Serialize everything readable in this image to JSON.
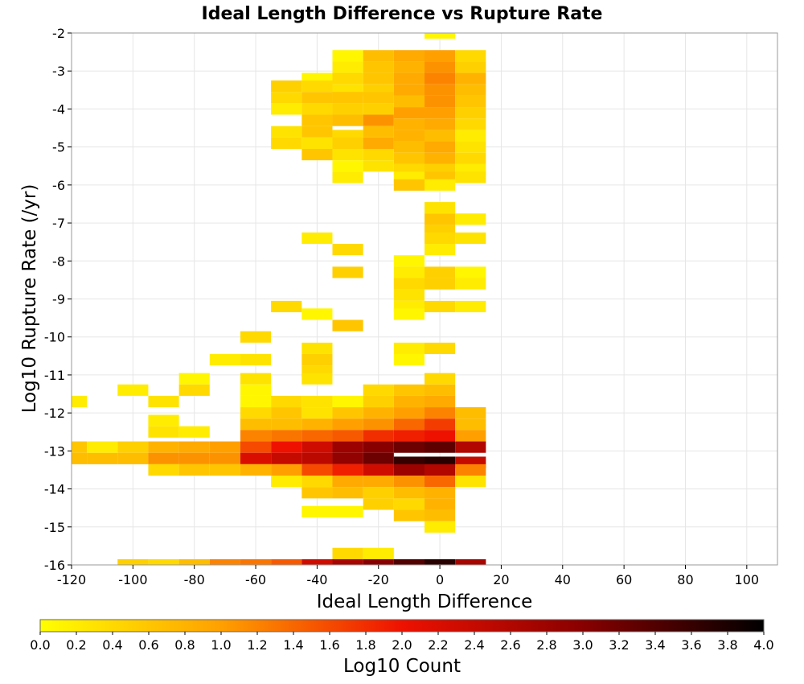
{
  "chart_data": {
    "type": "heatmap",
    "title": "Ideal Length Difference vs Rupture Rate",
    "xlabel": "Ideal Length Difference",
    "ylabel": "Log10 Rupture Rate (/yr)",
    "colorbar_label": "Log10 Count",
    "xlim": [
      -120,
      110
    ],
    "ylim": [
      -16,
      -2
    ],
    "x_ticks": [
      -120,
      -100,
      -80,
      -60,
      -40,
      -20,
      0,
      20,
      40,
      60,
      80,
      100
    ],
    "y_ticks": [
      -2,
      -3,
      -4,
      -5,
      -6,
      -7,
      -8,
      -9,
      -10,
      -11,
      -12,
      -13,
      -14,
      -15,
      -16
    ],
    "colorbar_range": [
      0,
      4
    ],
    "colorbar_ticks": [
      "0.0",
      "0.2",
      "0.4",
      "0.6",
      "0.8",
      "1.0",
      "1.2",
      "1.4",
      "1.6",
      "1.8",
      "2.0",
      "2.2",
      "2.4",
      "2.6",
      "2.8",
      "3.0",
      "3.2",
      "3.4",
      "3.6",
      "3.8",
      "4.0"
    ],
    "colormap": [
      "#ffff00",
      "#ffa000",
      "#ee1100",
      "#880000",
      "#000000"
    ],
    "bin_width_x": 10,
    "bin_height_y": 0.3,
    "cells": [
      [
        0,
        -2.0,
        0.1
      ],
      [
        -30,
        -2.6,
        0.1
      ],
      [
        -20,
        -2.6,
        0.7
      ],
      [
        -10,
        -2.6,
        0.9
      ],
      [
        0,
        -2.6,
        1.0
      ],
      [
        10,
        -2.6,
        0.4
      ],
      [
        -30,
        -2.9,
        0.2
      ],
      [
        -20,
        -2.9,
        0.6
      ],
      [
        -10,
        -2.9,
        0.8
      ],
      [
        0,
        -2.9,
        1.1
      ],
      [
        10,
        -2.9,
        0.5
      ],
      [
        -40,
        -3.2,
        0.1
      ],
      [
        -30,
        -3.2,
        0.4
      ],
      [
        -20,
        -3.2,
        0.6
      ],
      [
        -10,
        -3.2,
        0.9
      ],
      [
        0,
        -3.2,
        1.2
      ],
      [
        10,
        -3.2,
        0.8
      ],
      [
        -50,
        -3.4,
        0.5
      ],
      [
        -40,
        -3.4,
        0.4
      ],
      [
        -30,
        -3.5,
        0.3
      ],
      [
        -20,
        -3.5,
        0.5
      ],
      [
        -10,
        -3.5,
        0.9
      ],
      [
        0,
        -3.5,
        1.1
      ],
      [
        10,
        -3.5,
        0.7
      ],
      [
        -50,
        -3.7,
        0.4
      ],
      [
        -40,
        -3.7,
        0.6
      ],
      [
        -30,
        -3.7,
        0.6
      ],
      [
        -20,
        -3.7,
        0.6
      ],
      [
        -10,
        -3.8,
        0.7
      ],
      [
        0,
        -3.8,
        1.1
      ],
      [
        10,
        -3.8,
        0.6
      ],
      [
        -50,
        -4.0,
        0.2
      ],
      [
        -30,
        -4.0,
        0.5
      ],
      [
        -40,
        -4.0,
        0.4
      ],
      [
        -20,
        -4.0,
        0.5
      ],
      [
        -10,
        -4.1,
        1.0
      ],
      [
        0,
        -4.1,
        1.0
      ],
      [
        10,
        -4.1,
        0.5
      ],
      [
        -40,
        -4.3,
        0.6
      ],
      [
        -30,
        -4.3,
        0.7
      ],
      [
        -20,
        -4.3,
        1.1
      ],
      [
        -10,
        -4.4,
        0.8
      ],
      [
        0,
        -4.4,
        0.9
      ],
      [
        10,
        -4.4,
        0.4
      ],
      [
        -50,
        -4.6,
        0.3
      ],
      [
        -40,
        -4.6,
        0.6
      ],
      [
        -30,
        -4.7,
        0.4
      ],
      [
        -20,
        -4.6,
        0.7
      ],
      [
        -10,
        -4.7,
        0.8
      ],
      [
        0,
        -4.7,
        0.7
      ],
      [
        10,
        -4.7,
        0.2
      ],
      [
        -50,
        -4.9,
        0.4
      ],
      [
        -40,
        -4.9,
        0.3
      ],
      [
        -30,
        -4.9,
        0.5
      ],
      [
        -20,
        -4.9,
        0.9
      ],
      [
        -10,
        -5.0,
        0.7
      ],
      [
        0,
        -5.0,
        0.9
      ],
      [
        10,
        -5.0,
        0.3
      ],
      [
        -40,
        -5.2,
        0.6
      ],
      [
        -30,
        -5.2,
        0.3
      ],
      [
        -20,
        -5.2,
        0.4
      ],
      [
        -10,
        -5.3,
        0.6
      ],
      [
        0,
        -5.3,
        0.8
      ],
      [
        10,
        -5.3,
        0.4
      ],
      [
        -30,
        -5.5,
        0.1
      ],
      [
        -20,
        -5.5,
        0.3
      ],
      [
        -10,
        -5.6,
        0.4
      ],
      [
        0,
        -5.6,
        0.5
      ],
      [
        10,
        -5.6,
        0.2
      ],
      [
        -30,
        -5.8,
        0.2
      ],
      [
        -10,
        -5.8,
        0.2
      ],
      [
        0,
        -5.8,
        0.6
      ],
      [
        10,
        -5.8,
        0.3
      ],
      [
        -10,
        -6.0,
        0.6
      ],
      [
        0,
        -6.0,
        0.2
      ],
      [
        0,
        -6.6,
        0.3
      ],
      [
        0,
        -6.9,
        0.6
      ],
      [
        10,
        -6.9,
        0.2
      ],
      [
        0,
        -7.2,
        0.5
      ],
      [
        -40,
        -7.4,
        0.2
      ],
      [
        0,
        -7.4,
        0.4
      ],
      [
        10,
        -7.4,
        0.3
      ],
      [
        -30,
        -7.7,
        0.4
      ],
      [
        0,
        -7.7,
        0.2
      ],
      [
        -10,
        -8.0,
        0.1
      ],
      [
        -10,
        -8.3,
        0.2
      ],
      [
        -30,
        -8.3,
        0.5
      ],
      [
        0,
        -8.3,
        0.5
      ],
      [
        10,
        -8.3,
        0.1
      ],
      [
        -10,
        -8.6,
        0.4
      ],
      [
        0,
        -8.6,
        0.5
      ],
      [
        10,
        -8.6,
        0.2
      ],
      [
        -10,
        -8.9,
        0.3
      ],
      [
        -10,
        -9.2,
        0.2
      ],
      [
        -50,
        -9.2,
        0.4
      ],
      [
        0,
        -9.2,
        0.4
      ],
      [
        10,
        -9.2,
        0.2
      ],
      [
        -40,
        -9.4,
        0.1
      ],
      [
        -10,
        -9.4,
        0.1
      ],
      [
        -30,
        -9.7,
        0.6
      ],
      [
        -60,
        -10.0,
        0.4
      ],
      [
        -40,
        -10.3,
        0.3
      ],
      [
        0,
        -10.3,
        0.4
      ],
      [
        -10,
        -10.3,
        0.2
      ],
      [
        -70,
        -10.6,
        0.2
      ],
      [
        -60,
        -10.6,
        0.3
      ],
      [
        -40,
        -10.6,
        0.5
      ],
      [
        -10,
        -10.6,
        0.1
      ],
      [
        -40,
        -10.9,
        0.4
      ],
      [
        -80,
        -11.1,
        0.1
      ],
      [
        -60,
        -11.1,
        0.3
      ],
      [
        -40,
        -11.1,
        0.3
      ],
      [
        0,
        -11.1,
        0.4
      ],
      [
        -100,
        -11.4,
        0.2
      ],
      [
        -80,
        -11.4,
        0.4
      ],
      [
        -60,
        -11.4,
        0.1
      ],
      [
        -20,
        -11.4,
        0.4
      ],
      [
        -10,
        -11.4,
        0.6
      ],
      [
        0,
        -11.4,
        0.7
      ],
      [
        -120,
        -11.7,
        0.2
      ],
      [
        -90,
        -11.7,
        0.3
      ],
      [
        -60,
        -11.7,
        0.1
      ],
      [
        -50,
        -11.7,
        0.4
      ],
      [
        -40,
        -11.7,
        0.3
      ],
      [
        -30,
        -11.7,
        0.1
      ],
      [
        -20,
        -11.7,
        0.5
      ],
      [
        -10,
        -11.7,
        0.8
      ],
      [
        0,
        -11.7,
        0.9
      ],
      [
        -60,
        -12.0,
        0.4
      ],
      [
        -50,
        -12.0,
        0.6
      ],
      [
        -40,
        -12.0,
        0.3
      ],
      [
        -30,
        -12.0,
        0.6
      ],
      [
        -20,
        -12.0,
        0.8
      ],
      [
        -10,
        -12.0,
        1.0
      ],
      [
        0,
        -12.0,
        1.2
      ],
      [
        10,
        -12.0,
        0.7
      ],
      [
        -90,
        -12.2,
        0.2
      ],
      [
        -60,
        -12.3,
        0.7
      ],
      [
        -50,
        -12.3,
        0.7
      ],
      [
        -40,
        -12.3,
        0.8
      ],
      [
        -30,
        -12.3,
        1.0
      ],
      [
        -20,
        -12.3,
        1.1
      ],
      [
        -10,
        -12.3,
        1.4
      ],
      [
        0,
        -12.3,
        1.7
      ],
      [
        10,
        -12.3,
        0.7
      ],
      [
        -90,
        -12.5,
        0.3
      ],
      [
        -80,
        -12.5,
        0.2
      ],
      [
        -60,
        -12.6,
        1.2
      ],
      [
        -50,
        -12.6,
        1.3
      ],
      [
        -40,
        -12.6,
        1.4
      ],
      [
        -30,
        -12.6,
        1.5
      ],
      [
        -20,
        -12.6,
        1.8
      ],
      [
        -10,
        -12.6,
        1.9
      ],
      [
        0,
        -12.6,
        2.0
      ],
      [
        10,
        -12.6,
        1.0
      ],
      [
        -120,
        -12.9,
        0.6
      ],
      [
        -110,
        -12.9,
        0.2
      ],
      [
        -100,
        -12.9,
        0.5
      ],
      [
        -90,
        -12.9,
        0.8
      ],
      [
        -80,
        -12.9,
        0.9
      ],
      [
        -70,
        -12.9,
        1.0
      ],
      [
        -60,
        -12.9,
        1.6
      ],
      [
        -50,
        -12.9,
        2.0
      ],
      [
        -40,
        -12.9,
        2.3
      ],
      [
        -30,
        -12.9,
        2.8
      ],
      [
        -20,
        -12.9,
        3.0
      ],
      [
        -10,
        -12.9,
        3.2
      ],
      [
        0,
        -12.9,
        3.3
      ],
      [
        10,
        -12.9,
        2.6
      ],
      [
        -120,
        -13.2,
        0.7
      ],
      [
        -110,
        -13.2,
        0.7
      ],
      [
        -100,
        -13.2,
        0.7
      ],
      [
        -90,
        -13.2,
        1.1
      ],
      [
        -80,
        -13.2,
        1.1
      ],
      [
        -70,
        -13.2,
        1.1
      ],
      [
        -60,
        -13.2,
        2.2
      ],
      [
        -50,
        -13.2,
        2.4
      ],
      [
        -40,
        -13.2,
        2.5
      ],
      [
        -30,
        -13.2,
        2.9
      ],
      [
        -20,
        -13.2,
        3.2
      ],
      [
        -10,
        -13.3,
        3.6
      ],
      [
        0,
        -13.3,
        3.7
      ],
      [
        10,
        -13.3,
        2.4
      ],
      [
        -90,
        -13.5,
        0.4
      ],
      [
        -80,
        -13.5,
        0.6
      ],
      [
        -70,
        -13.5,
        0.6
      ],
      [
        -60,
        -13.5,
        0.8
      ],
      [
        -50,
        -13.5,
        1.0
      ],
      [
        -40,
        -13.5,
        1.6
      ],
      [
        -30,
        -13.5,
        1.9
      ],
      [
        -20,
        -13.5,
        2.3
      ],
      [
        -10,
        -13.5,
        2.8
      ],
      [
        0,
        -13.5,
        2.6
      ],
      [
        10,
        -13.5,
        1.2
      ],
      [
        -50,
        -13.8,
        0.2
      ],
      [
        -40,
        -13.8,
        0.4
      ],
      [
        -30,
        -13.8,
        0.9
      ],
      [
        -20,
        -13.8,
        0.9
      ],
      [
        -10,
        -13.8,
        1.1
      ],
      [
        0,
        -13.8,
        1.4
      ],
      [
        10,
        -13.8,
        0.3
      ],
      [
        -40,
        -14.1,
        0.6
      ],
      [
        -30,
        -14.1,
        0.7
      ],
      [
        -20,
        -14.1,
        0.5
      ],
      [
        -10,
        -14.1,
        0.7
      ],
      [
        0,
        -14.1,
        0.8
      ],
      [
        -20,
        -14.4,
        0.5
      ],
      [
        -10,
        -14.4,
        0.4
      ],
      [
        0,
        -14.4,
        0.8
      ],
      [
        -40,
        -14.6,
        0.1
      ],
      [
        -30,
        -14.6,
        0.1
      ],
      [
        -10,
        -14.7,
        0.6
      ],
      [
        0,
        -14.7,
        0.7
      ],
      [
        0,
        -15.0,
        0.2
      ],
      [
        -30,
        -15.7,
        0.4
      ],
      [
        -20,
        -15.7,
        0.2
      ],
      [
        -100,
        -16.0,
        0.5
      ],
      [
        -90,
        -16.0,
        0.4
      ],
      [
        -80,
        -16.0,
        0.7
      ],
      [
        -70,
        -16.0,
        1.2
      ],
      [
        -60,
        -16.0,
        1.3
      ],
      [
        -50,
        -16.0,
        1.5
      ],
      [
        -40,
        -16.0,
        2.3
      ],
      [
        -30,
        -16.0,
        2.7
      ],
      [
        -20,
        -16.0,
        3.0
      ],
      [
        -10,
        -16.0,
        3.4
      ],
      [
        0,
        -16.0,
        3.7
      ],
      [
        10,
        -16.0,
        2.7
      ]
    ]
  }
}
